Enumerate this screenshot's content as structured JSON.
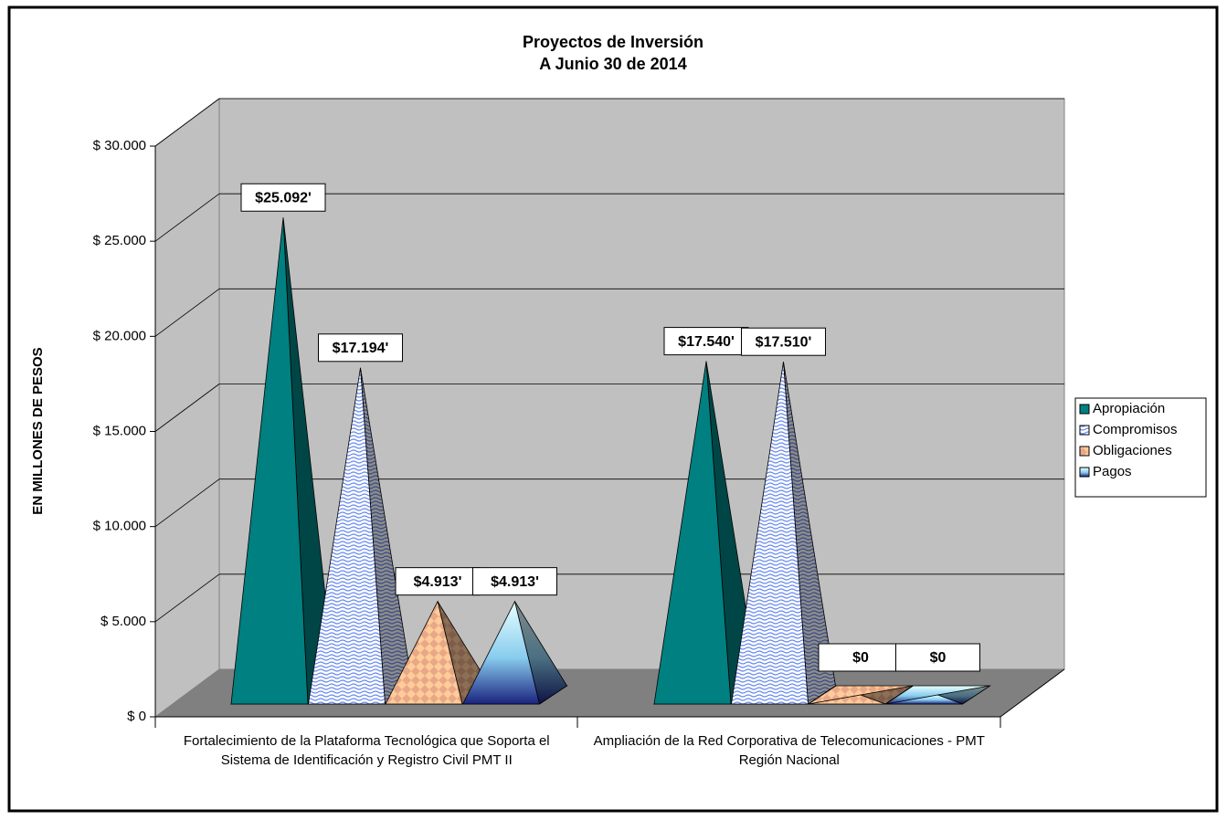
{
  "chart_data": {
    "type": "bar3d-pyramid",
    "title": "Proyectos de Inversión",
    "subtitle": "A Junio 30 de 2014",
    "y_label": "EN MILLONES DE PESOS",
    "categories": [
      "Fortalecimiento de la Plataforma Tecnológica que Soporta el Sistema de Identificación y Registro Civil PMT II",
      "Ampliación de la Red Corporativa de Telecomunicaciones - PMT Región Nacional"
    ],
    "series": [
      {
        "name": "Apropiación",
        "color": "#008080",
        "values": [
          25092,
          17540
        ],
        "value_labels": [
          "$25.092'",
          "$17.540'"
        ]
      },
      {
        "name": "Compromisos",
        "color": "#6688ee",
        "values": [
          17194,
          17510
        ],
        "value_labels": [
          "$17.194'",
          "$17.510'"
        ]
      },
      {
        "name": "Obligaciones",
        "color": "#ffcc99",
        "values": [
          4913,
          0
        ],
        "value_labels": [
          "$4.913'",
          "$0"
        ]
      },
      {
        "name": "Pagos",
        "color": "#1a237e",
        "values": [
          4913,
          0
        ],
        "value_labels": [
          "$4.913'",
          "$0"
        ]
      }
    ],
    "ylim": [
      0,
      30000
    ],
    "yticks": [
      {
        "value": 0,
        "label": "$ 0"
      },
      {
        "value": 5000,
        "label": "$ 5.000"
      },
      {
        "value": 10000,
        "label": "$ 10.000"
      },
      {
        "value": 15000,
        "label": "$ 15.000"
      },
      {
        "value": 20000,
        "label": "$ 20.000"
      },
      {
        "value": 25000,
        "label": "$ 25.000"
      },
      {
        "value": 30000,
        "label": "$ 30.000"
      }
    ],
    "grid": true,
    "legend": "right"
  }
}
